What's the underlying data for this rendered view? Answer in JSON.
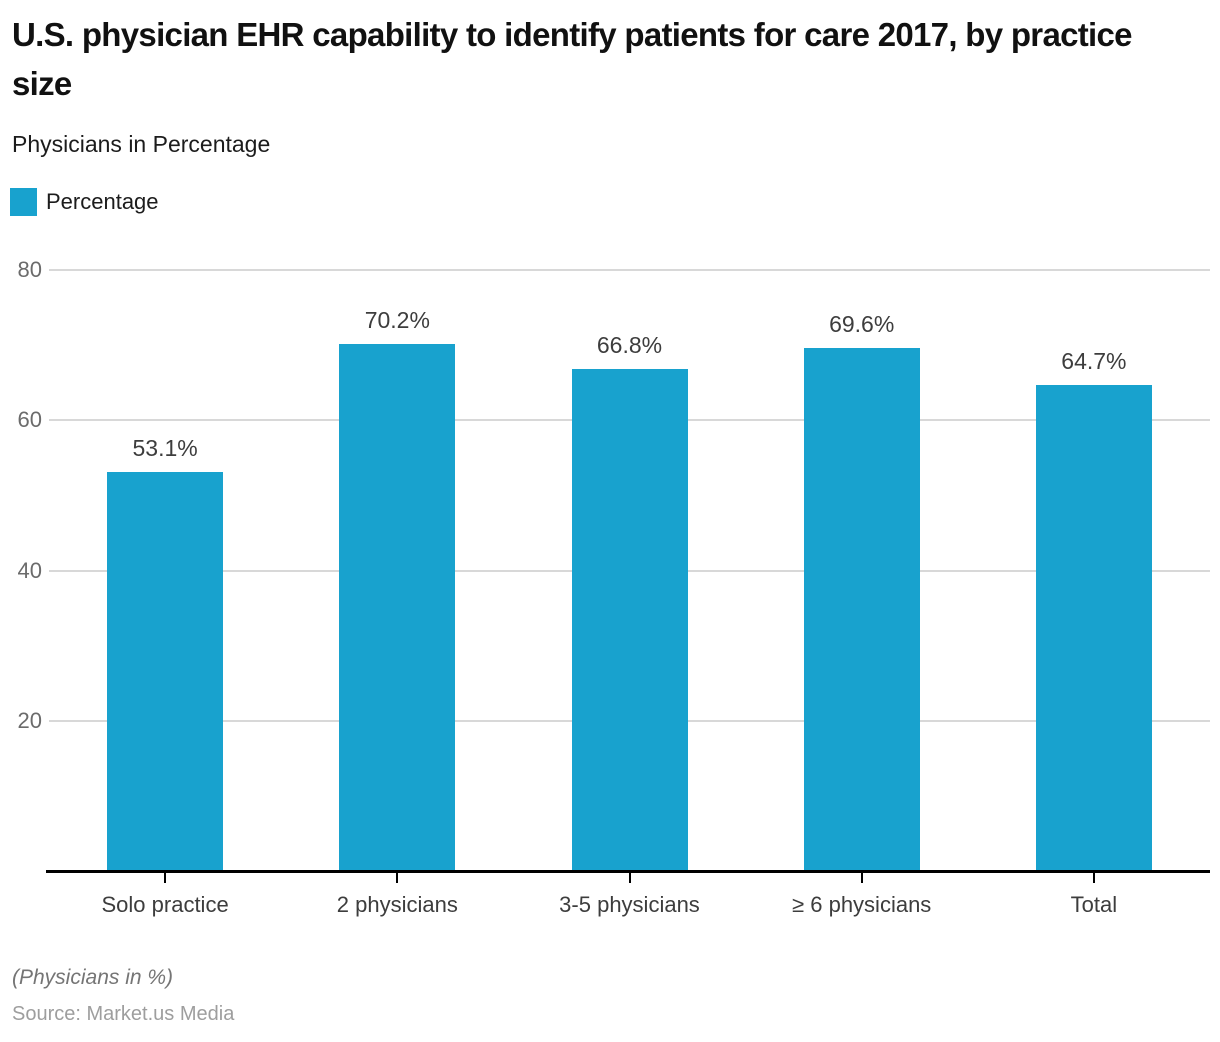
{
  "title": "U.S. physician EHR capability to identify patients for care 2017, by practice size",
  "subtitle": "Physicians in Percentage",
  "legend": {
    "label": "Percentage",
    "color": "#18a2ce"
  },
  "chart_data": {
    "type": "bar",
    "title": "U.S. physician EHR capability to identify patients for care 2017, by practice size",
    "subtitle": "Physicians in Percentage",
    "categories": [
      "Solo practice",
      "2 physicians",
      "3-5 physicians",
      "≥ 6 physicians",
      "Total"
    ],
    "values": [
      53.1,
      70.2,
      66.8,
      69.6,
      64.7
    ],
    "value_labels": [
      "53.1%",
      "70.2%",
      "66.8%",
      "69.6%",
      "64.7%"
    ],
    "series_name": "Percentage",
    "xlabel": "",
    "ylabel": "",
    "ylim": [
      0,
      80
    ],
    "yticks": [
      20,
      40,
      60,
      80
    ],
    "grid": true,
    "legend_position": "top-left",
    "bar_color": "#18a2ce",
    "gridline_color": "#d8d8d8",
    "axis_color": "#000000"
  },
  "footer": {
    "note": "(Physicians in %)",
    "source": "Source: Market.us Media"
  }
}
